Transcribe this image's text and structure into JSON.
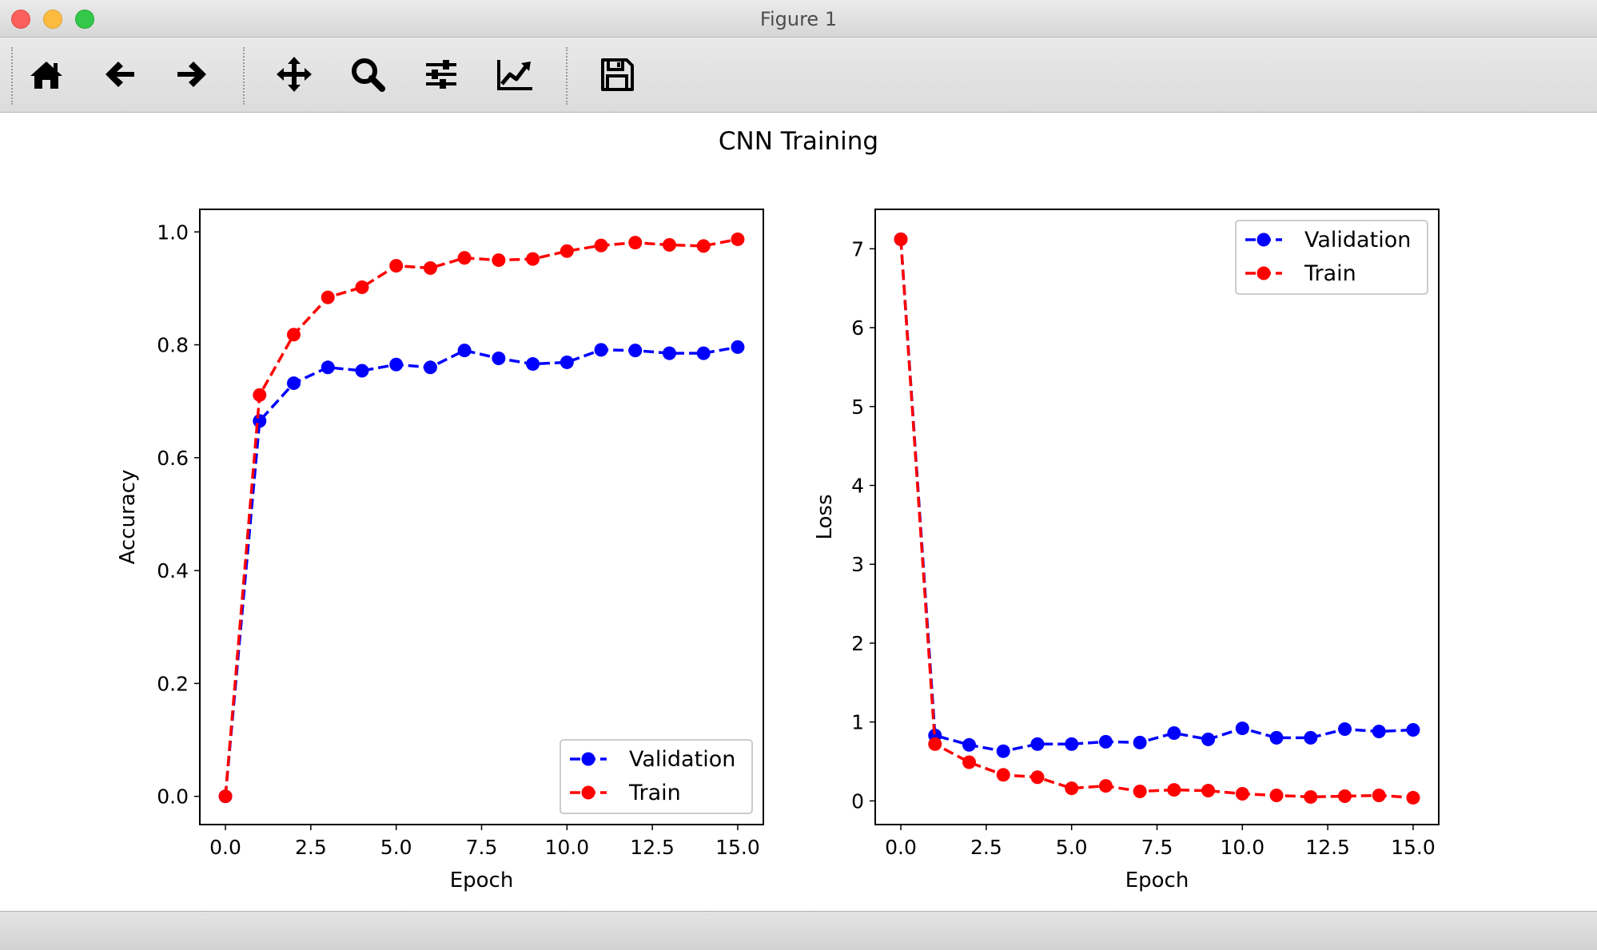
{
  "window": {
    "title": "Figure 1"
  },
  "toolbar": {
    "buttons": [
      {
        "name": "home-button",
        "icon": "home-icon"
      },
      {
        "name": "back-button",
        "icon": "arrow-left-icon"
      },
      {
        "name": "forward-button",
        "icon": "arrow-right-icon"
      },
      {
        "name": "pan-button",
        "icon": "move-icon"
      },
      {
        "name": "zoom-button",
        "icon": "magnifier-icon"
      },
      {
        "name": "subplots-button",
        "icon": "sliders-icon"
      },
      {
        "name": "customize-button",
        "icon": "line-chart-icon"
      },
      {
        "name": "save-button",
        "icon": "floppy-disk-icon"
      }
    ]
  },
  "figure": {
    "suptitle": "CNN Training"
  },
  "chart_data": [
    {
      "type": "line",
      "title": "",
      "xlabel": "Epoch",
      "ylabel": "Accuracy",
      "xlim": [
        -0.75,
        15.75
      ],
      "ylim": [
        -0.05,
        1.04
      ],
      "xticks": [
        0,
        2.5,
        5,
        7.5,
        10,
        12.5,
        15
      ],
      "xtick_labels": [
        "0.0",
        "2.5",
        "5.0",
        "7.5",
        "10.0",
        "12.5",
        "15.0"
      ],
      "yticks": [
        0,
        0.2,
        0.4,
        0.6,
        0.8,
        1.0
      ],
      "ytick_labels": [
        "0.0",
        "0.2",
        "0.4",
        "0.6",
        "0.8",
        "1.0"
      ],
      "grid": false,
      "legend": "lower-right",
      "x": [
        0,
        1,
        2,
        3,
        4,
        5,
        6,
        7,
        8,
        9,
        10,
        11,
        12,
        13,
        14,
        15
      ],
      "series": [
        {
          "name": "Validation",
          "color": "#0000ff",
          "values": [
            0.0,
            0.665,
            0.732,
            0.76,
            0.754,
            0.765,
            0.76,
            0.79,
            0.776,
            0.766,
            0.769,
            0.791,
            0.79,
            0.785,
            0.785,
            0.796
          ]
        },
        {
          "name": "Train",
          "color": "#ff0000",
          "values": [
            0.0,
            0.711,
            0.818,
            0.884,
            0.902,
            0.94,
            0.936,
            0.954,
            0.95,
            0.952,
            0.966,
            0.976,
            0.981,
            0.977,
            0.975,
            0.987
          ]
        }
      ]
    },
    {
      "type": "line",
      "title": "",
      "xlabel": "Epoch",
      "ylabel": "Loss",
      "xlim": [
        -0.75,
        15.75
      ],
      "ylim": [
        -0.3,
        7.5
      ],
      "xticks": [
        0,
        2.5,
        5,
        7.5,
        10,
        12.5,
        15
      ],
      "xtick_labels": [
        "0.0",
        "2.5",
        "5.0",
        "7.5",
        "10.0",
        "12.5",
        "15.0"
      ],
      "yticks": [
        0,
        1,
        2,
        3,
        4,
        5,
        6,
        7
      ],
      "ytick_labels": [
        "0",
        "1",
        "2",
        "3",
        "4",
        "5",
        "6",
        "7"
      ],
      "grid": false,
      "legend": "upper-right",
      "x": [
        0,
        1,
        2,
        3,
        4,
        5,
        6,
        7,
        8,
        9,
        10,
        11,
        12,
        13,
        14,
        15
      ],
      "series": [
        {
          "name": "Validation",
          "color": "#0000ff",
          "values": [
            7.12,
            0.83,
            0.71,
            0.63,
            0.72,
            0.72,
            0.75,
            0.74,
            0.86,
            0.78,
            0.92,
            0.8,
            0.8,
            0.91,
            0.88,
            0.9
          ]
        },
        {
          "name": "Train",
          "color": "#ff0000",
          "values": [
            7.12,
            0.72,
            0.49,
            0.33,
            0.3,
            0.16,
            0.19,
            0.12,
            0.14,
            0.13,
            0.09,
            0.07,
            0.05,
            0.06,
            0.07,
            0.04
          ]
        }
      ]
    }
  ]
}
